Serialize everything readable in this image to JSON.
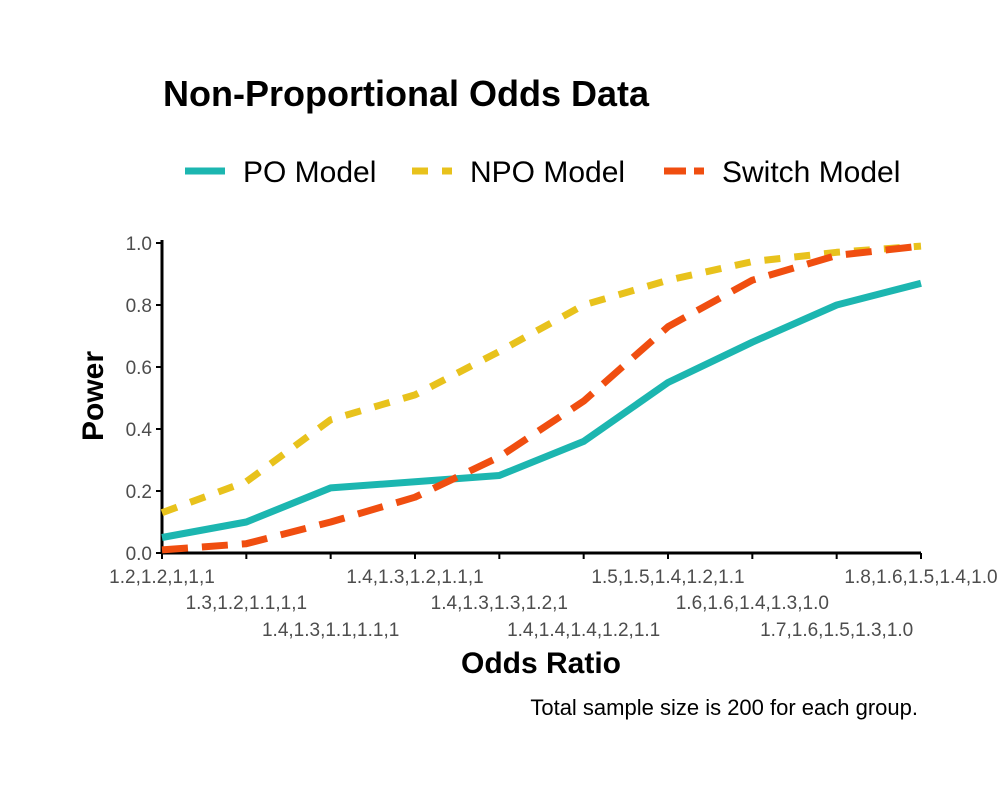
{
  "chart_data": {
    "type": "line",
    "title": "Non-Proportional Odds Data",
    "xlabel": "Odds Ratio",
    "ylabel": "Power",
    "caption": "Total sample size is 200 for each group.",
    "ylim": [
      0,
      1
    ],
    "yticks": [
      "0.0",
      "0.2",
      "0.4",
      "0.6",
      "0.8",
      "1.0"
    ],
    "categories": [
      "1.2,1.2,1,1,1",
      "1.3,1.2,1.1,1,1",
      "1.4,1.3,1.1,1.1,1",
      "1.4,1.3,1.2,1.1,1",
      "1.4,1.3,1.3,1.2,1",
      "1.4,1.4,1.4,1.2,1.1",
      "1.5,1.5,1.4,1.2,1.1",
      "1.6,1.6,1.4,1.3,1.0",
      "1.7,1.6,1.5,1.3,1.0",
      "1.8,1.6,1.5,1.4,1.0"
    ],
    "series": [
      {
        "name": "PO Model",
        "color": "#1cb6b0",
        "dash": "solid",
        "values": [
          0.05,
          0.1,
          0.21,
          0.23,
          0.25,
          0.36,
          0.55,
          0.68,
          0.8,
          0.87
        ]
      },
      {
        "name": "NPO Model",
        "color": "#e8c21c",
        "dash": "dotted",
        "values": [
          0.13,
          0.23,
          0.43,
          0.51,
          0.65,
          0.8,
          0.88,
          0.94,
          0.97,
          0.99
        ]
      },
      {
        "name": "Switch Model",
        "color": "#f04e10",
        "dash": "dashed",
        "values": [
          0.01,
          0.03,
          0.1,
          0.18,
          0.31,
          0.49,
          0.73,
          0.88,
          0.96,
          0.99
        ]
      }
    ],
    "legend_position": "top"
  }
}
